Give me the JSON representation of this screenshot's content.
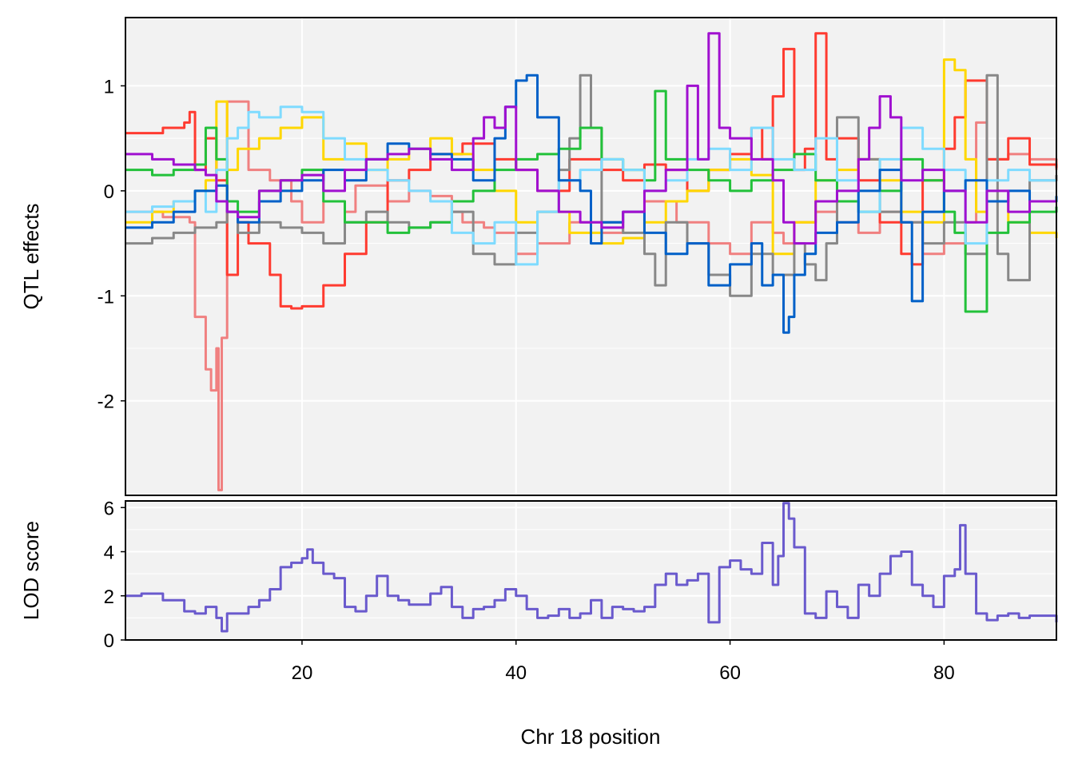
{
  "chart_data": [
    {
      "panel": "effects",
      "type": "line",
      "ylabel": "QTL effects",
      "xlim": [
        3.5,
        90.5
      ],
      "ylim": [
        -2.9,
        1.65
      ],
      "y_ticks": [
        1,
        0,
        -1,
        -2
      ],
      "y_tick_labels": [
        "1",
        "0",
        "-1",
        "-2"
      ],
      "x_ticks": [
        20,
        40,
        60,
        80
      ],
      "grid": true,
      "series": [
        {
          "color": "#F08080",
          "x": [
            3.5,
            7,
            9.5,
            10,
            11,
            11.5,
            12,
            12.2,
            12.5,
            13,
            15,
            17,
            19,
            20,
            22,
            24,
            25,
            28,
            30,
            32,
            34,
            35,
            37,
            38,
            40,
            42,
            45,
            48,
            50,
            52,
            55,
            58,
            60,
            62,
            64,
            65,
            66,
            68,
            70,
            72,
            74,
            76,
            78,
            80,
            82,
            83,
            84,
            86,
            88,
            90.5
          ],
          "y": [
            -0.2,
            -0.25,
            -0.3,
            -1.2,
            -1.7,
            -1.9,
            -1.5,
            -2.85,
            -1.4,
            0.85,
            0.2,
            0.1,
            -0.1,
            -0.3,
            -0.1,
            -0.2,
            0.05,
            -0.1,
            0.0,
            -0.05,
            -0.2,
            -0.3,
            -0.35,
            -0.4,
            -0.6,
            -0.5,
            -0.3,
            -0.4,
            -0.2,
            -0.1,
            -0.3,
            -0.5,
            -0.6,
            -0.3,
            -0.4,
            -0.5,
            -0.3,
            -0.2,
            -0.3,
            -0.4,
            -0.2,
            -0.3,
            -0.6,
            -0.5,
            -0.3,
            0.65,
            0.3,
            0.35,
            0.3,
            0.2
          ]
        },
        {
          "color": "#FF3B30",
          "x": [
            3.5,
            7,
            9,
            9.5,
            10,
            11,
            12,
            13,
            14,
            15,
            17,
            18,
            19,
            20,
            22,
            24,
            26,
            28,
            30,
            32,
            35,
            38,
            40,
            42,
            45,
            48,
            50,
            52,
            54,
            56,
            58,
            60,
            62,
            63,
            64,
            65,
            66,
            67,
            68,
            69,
            70,
            72,
            74,
            76,
            77,
            78,
            80,
            81,
            82,
            84,
            86,
            88,
            90.5
          ],
          "y": [
            0.55,
            0.6,
            0.65,
            0.75,
            0.2,
            0.5,
            0.1,
            -0.8,
            -0.3,
            -0.5,
            -0.8,
            -1.1,
            -1.12,
            -1.1,
            -0.9,
            -0.6,
            -0.3,
            0.1,
            0.2,
            0.35,
            0.45,
            0.3,
            0.2,
            0.0,
            0.3,
            0.2,
            0.1,
            0.25,
            0.2,
            0.0,
            0.2,
            0.35,
            0.6,
            0.3,
            0.9,
            1.35,
            0.2,
            0.4,
            1.5,
            0.3,
            0.5,
            0.1,
            -0.3,
            -0.6,
            -0.7,
            0.1,
            0.4,
            0.7,
            1.05,
            0.3,
            0.5,
            0.25,
            0.22
          ]
        },
        {
          "color": "#FFD700",
          "x": [
            3.5,
            6,
            8,
            10,
            11,
            12,
            13,
            14,
            16,
            18,
            20,
            22,
            24,
            26,
            28,
            30,
            32,
            34,
            36,
            38,
            40,
            42,
            45,
            48,
            50,
            52,
            54,
            56,
            58,
            60,
            62,
            64,
            66,
            68,
            70,
            72,
            74,
            76,
            78,
            80,
            81,
            82,
            83,
            84,
            86,
            88,
            90.5
          ],
          "y": [
            -0.3,
            -0.2,
            -0.1,
            0.0,
            0.1,
            0.85,
            0.2,
            0.4,
            0.5,
            0.6,
            0.7,
            0.3,
            0.45,
            0.2,
            0.3,
            0.4,
            0.5,
            0.35,
            0.2,
            0.0,
            -0.3,
            -0.2,
            -0.4,
            -0.5,
            -0.45,
            -0.3,
            -0.1,
            0.0,
            0.2,
            0.3,
            0.15,
            -0.6,
            -0.3,
            0.1,
            0.2,
            0.3,
            0.1,
            -0.2,
            -0.3,
            1.25,
            1.15,
            0.3,
            -0.2,
            -0.1,
            -0.3,
            -0.4,
            -0.45
          ]
        },
        {
          "color": "#888888",
          "x": [
            3.5,
            6,
            8,
            10,
            12,
            13,
            14,
            16,
            18,
            20,
            22,
            24,
            26,
            28,
            30,
            32,
            34,
            36,
            38,
            40,
            42,
            44,
            45,
            46,
            47,
            48,
            50,
            52,
            53,
            54,
            56,
            58,
            60,
            62,
            64,
            66,
            67,
            68,
            69,
            70,
            72,
            74,
            76,
            78,
            80,
            82,
            84,
            85,
            86,
            88,
            90.5
          ],
          "y": [
            -0.5,
            -0.45,
            -0.4,
            -0.35,
            -0.3,
            -0.2,
            -0.4,
            -0.3,
            -0.35,
            -0.4,
            -0.5,
            -0.3,
            -0.2,
            -0.3,
            -0.35,
            -0.3,
            -0.2,
            -0.6,
            -0.7,
            -0.4,
            -0.2,
            0.2,
            0.5,
            1.1,
            0.6,
            -0.3,
            -0.4,
            -0.6,
            -0.9,
            -0.3,
            -0.5,
            -0.8,
            -1.0,
            -0.6,
            -0.8,
            -0.5,
            -0.7,
            -0.85,
            -0.5,
            0.7,
            0.3,
            -0.2,
            -0.3,
            -0.5,
            -0.3,
            -0.6,
            1.1,
            -0.6,
            -0.85,
            0.1,
            0.15
          ]
        },
        {
          "color": "#22C13A",
          "x": [
            3.5,
            6,
            8,
            10,
            11,
            12,
            13,
            14,
            16,
            18,
            20,
            22,
            24,
            26,
            28,
            30,
            32,
            34,
            36,
            38,
            40,
            42,
            44,
            46,
            48,
            50,
            52,
            53,
            54,
            56,
            58,
            60,
            62,
            64,
            66,
            68,
            70,
            72,
            74,
            76,
            78,
            80,
            81,
            82,
            84,
            86,
            88,
            90.5
          ],
          "y": [
            0.2,
            0.15,
            0.2,
            0.25,
            0.6,
            0.3,
            -0.1,
            -0.2,
            0.0,
            0.1,
            0.2,
            -0.1,
            -0.3,
            -0.3,
            -0.4,
            -0.35,
            -0.3,
            -0.1,
            0.0,
            0.2,
            0.3,
            0.35,
            0.4,
            0.6,
            0.3,
            0.2,
            0.1,
            0.95,
            0.3,
            0.2,
            0.1,
            0.0,
            0.1,
            0.2,
            0.35,
            0.1,
            -0.1,
            -0.2,
            0.0,
            0.3,
            0.1,
            -0.2,
            -0.4,
            -1.15,
            -0.4,
            -0.3,
            -0.2,
            -0.15
          ]
        },
        {
          "color": "#7FDBFF",
          "x": [
            3.5,
            6,
            8,
            10,
            11,
            12,
            13,
            14,
            15,
            16,
            18,
            20,
            22,
            24,
            26,
            28,
            30,
            32,
            34,
            36,
            38,
            40,
            42,
            44,
            46,
            48,
            50,
            52,
            54,
            56,
            58,
            60,
            62,
            64,
            66,
            68,
            70,
            72,
            74,
            76,
            78,
            80,
            82,
            84,
            86,
            88,
            90.5
          ],
          "y": [
            -0.2,
            -0.15,
            -0.1,
            0.0,
            -0.2,
            0.2,
            0.5,
            0.6,
            0.75,
            0.7,
            0.8,
            0.75,
            0.5,
            0.3,
            0.2,
            0.1,
            0.0,
            -0.1,
            -0.4,
            -0.5,
            -0.3,
            -0.7,
            -0.2,
            0.1,
            0.2,
            0.3,
            0.2,
            0.0,
            0.1,
            0.3,
            0.4,
            0.2,
            0.6,
            0.3,
            0.2,
            0.5,
            0.1,
            -0.2,
            0.3,
            0.6,
            0.4,
            0.2,
            -0.5,
            0.1,
            0.2,
            0.1,
            0.1
          ]
        },
        {
          "color": "#0060C8",
          "x": [
            3.5,
            6,
            8,
            10,
            12,
            13,
            14,
            16,
            18,
            20,
            22,
            24,
            26,
            28,
            30,
            32,
            34,
            36,
            38,
            39,
            40,
            41,
            42,
            44,
            46,
            47,
            48,
            50,
            52,
            54,
            56,
            58,
            60,
            62,
            63,
            64,
            65,
            65.5,
            66,
            67,
            68,
            70,
            72,
            74,
            76,
            77,
            78,
            80,
            82,
            84,
            86,
            88,
            90.5
          ],
          "y": [
            -0.35,
            -0.3,
            -0.2,
            0.0,
            0.05,
            -0.2,
            -0.3,
            -0.1,
            0.0,
            0.1,
            0.2,
            0.1,
            0.3,
            0.45,
            0.4,
            0.35,
            0.3,
            0.1,
            0.5,
            0.8,
            1.05,
            1.1,
            0.7,
            0.1,
            0.0,
            -0.5,
            -0.3,
            -0.2,
            -0.4,
            -0.6,
            -0.5,
            -0.9,
            -0.7,
            -0.5,
            -0.9,
            -0.8,
            -1.35,
            -1.2,
            -0.8,
            -0.6,
            -0.4,
            -0.3,
            0.0,
            0.2,
            -0.3,
            -1.05,
            -0.2,
            0.0,
            0.1,
            -0.1,
            0.0,
            -0.1,
            -0.05
          ]
        },
        {
          "color": "#A010D0",
          "x": [
            3.5,
            6,
            8,
            10,
            11,
            12,
            13,
            14,
            16,
            18,
            20,
            22,
            24,
            26,
            28,
            30,
            32,
            34,
            36,
            37,
            38,
            39,
            40,
            42,
            44,
            46,
            48,
            50,
            52,
            54,
            56,
            57,
            58,
            59,
            60,
            62,
            64,
            65,
            66,
            68,
            70,
            72,
            73,
            74,
            75,
            76,
            78,
            80,
            82,
            84,
            86,
            88,
            90.5
          ],
          "y": [
            0.35,
            0.3,
            0.25,
            0.2,
            0.15,
            -0.1,
            -0.2,
            -0.25,
            0.0,
            0.1,
            0.15,
            0.0,
            0.2,
            0.3,
            0.35,
            0.4,
            0.3,
            0.2,
            0.5,
            0.7,
            0.6,
            0.8,
            0.2,
            0.0,
            -0.2,
            -0.3,
            -0.35,
            -0.2,
            0.0,
            0.2,
            1.0,
            0.3,
            1.5,
            0.6,
            0.5,
            0.3,
            0.1,
            -0.3,
            -0.5,
            -0.1,
            0.0,
            0.3,
            0.6,
            0.9,
            0.7,
            0.1,
            0.2,
            0.0,
            -0.3,
            0.0,
            -0.2,
            -0.1,
            -0.1
          ]
        }
      ]
    },
    {
      "panel": "lod",
      "type": "line",
      "ylabel": "LOD score",
      "xlabel": "Chr 18 position",
      "xlim": [
        3.5,
        90.5
      ],
      "ylim": [
        0,
        6.3
      ],
      "y_ticks": [
        0,
        2,
        4,
        6
      ],
      "y_tick_labels": [
        "0",
        "2",
        "4",
        "6"
      ],
      "x_ticks": [
        20,
        40,
        60,
        80
      ],
      "x_tick_labels": [
        "20",
        "40",
        "60",
        "80"
      ],
      "grid": true,
      "series": [
        {
          "color": "#6A5ACD",
          "x": [
            3.5,
            5,
            7,
            9,
            10,
            11,
            12,
            12.5,
            13,
            14,
            15,
            16,
            17,
            18,
            19,
            20,
            20.5,
            21,
            22,
            23,
            24,
            25,
            26,
            27,
            28,
            29,
            30,
            32,
            33,
            34,
            35,
            36,
            37,
            38,
            39,
            40,
            41,
            42,
            43,
            44,
            45,
            46,
            47,
            48,
            49,
            50,
            51,
            52,
            53,
            54,
            55,
            56,
            57,
            58,
            59,
            60,
            61,
            62,
            63,
            64,
            64.5,
            65,
            65.5,
            66,
            67,
            68,
            69,
            70,
            71,
            72,
            73,
            74,
            75,
            76,
            77,
            78,
            79,
            80,
            81,
            81.5,
            82,
            83,
            84,
            85,
            86,
            87,
            88,
            89,
            90.5
          ],
          "y": [
            2.0,
            2.1,
            1.8,
            1.3,
            1.2,
            1.5,
            1.0,
            0.4,
            1.2,
            1.2,
            1.5,
            1.8,
            2.3,
            3.3,
            3.5,
            3.7,
            4.1,
            3.5,
            3.0,
            2.8,
            1.5,
            1.3,
            2.0,
            2.9,
            2.0,
            1.8,
            1.6,
            2.1,
            2.4,
            1.5,
            1.0,
            1.4,
            1.5,
            1.8,
            2.3,
            2.0,
            1.4,
            1.0,
            1.1,
            1.4,
            1.0,
            1.2,
            1.8,
            1.0,
            1.5,
            1.4,
            1.3,
            1.5,
            2.5,
            3.0,
            2.5,
            2.7,
            3.0,
            0.8,
            3.3,
            3.6,
            3.2,
            3.0,
            4.4,
            2.5,
            3.8,
            6.2,
            5.5,
            4.2,
            1.2,
            1.0,
            2.2,
            1.5,
            1.0,
            2.5,
            2.0,
            3.0,
            3.8,
            4.0,
            2.5,
            2.0,
            1.5,
            2.9,
            3.2,
            5.2,
            3.0,
            1.2,
            0.9,
            1.1,
            1.2,
            1.0,
            1.1,
            1.1,
            0.8
          ]
        }
      ]
    }
  ]
}
